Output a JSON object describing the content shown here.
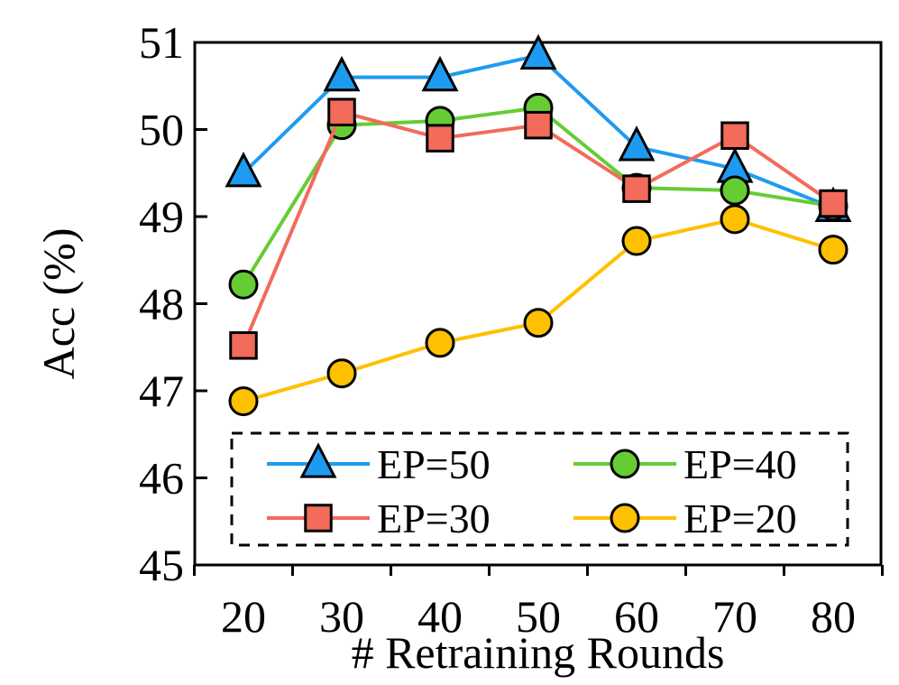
{
  "chart_data": {
    "type": "line",
    "xlabel": "# Retraining Rounds",
    "ylabel": "Acc (%)",
    "x": [
      20,
      30,
      40,
      50,
      60,
      70,
      80
    ],
    "ylim": [
      45,
      51
    ],
    "yticks": [
      45,
      46,
      47,
      48,
      49,
      50,
      51
    ],
    "grid": false,
    "legend_position": "bottom",
    "series": [
      {
        "name": "EP=50",
        "color": "#1E9BF0",
        "marker": "triangle",
        "values": [
          49.5,
          50.6,
          50.6,
          50.85,
          49.8,
          49.55,
          49.1
        ]
      },
      {
        "name": "EP=40",
        "color": "#66CC33",
        "marker": "circle",
        "values": [
          48.22,
          50.05,
          50.1,
          50.25,
          49.33,
          49.3,
          49.12
        ]
      },
      {
        "name": "EP=30",
        "color": "#F26B5B",
        "marker": "square",
        "values": [
          47.52,
          50.2,
          49.9,
          50.05,
          49.32,
          49.93,
          49.15
        ]
      },
      {
        "name": "EP=20",
        "color": "#FFC000",
        "marker": "circle",
        "values": [
          46.88,
          47.2,
          47.55,
          47.78,
          48.72,
          48.97,
          48.62
        ]
      }
    ]
  }
}
